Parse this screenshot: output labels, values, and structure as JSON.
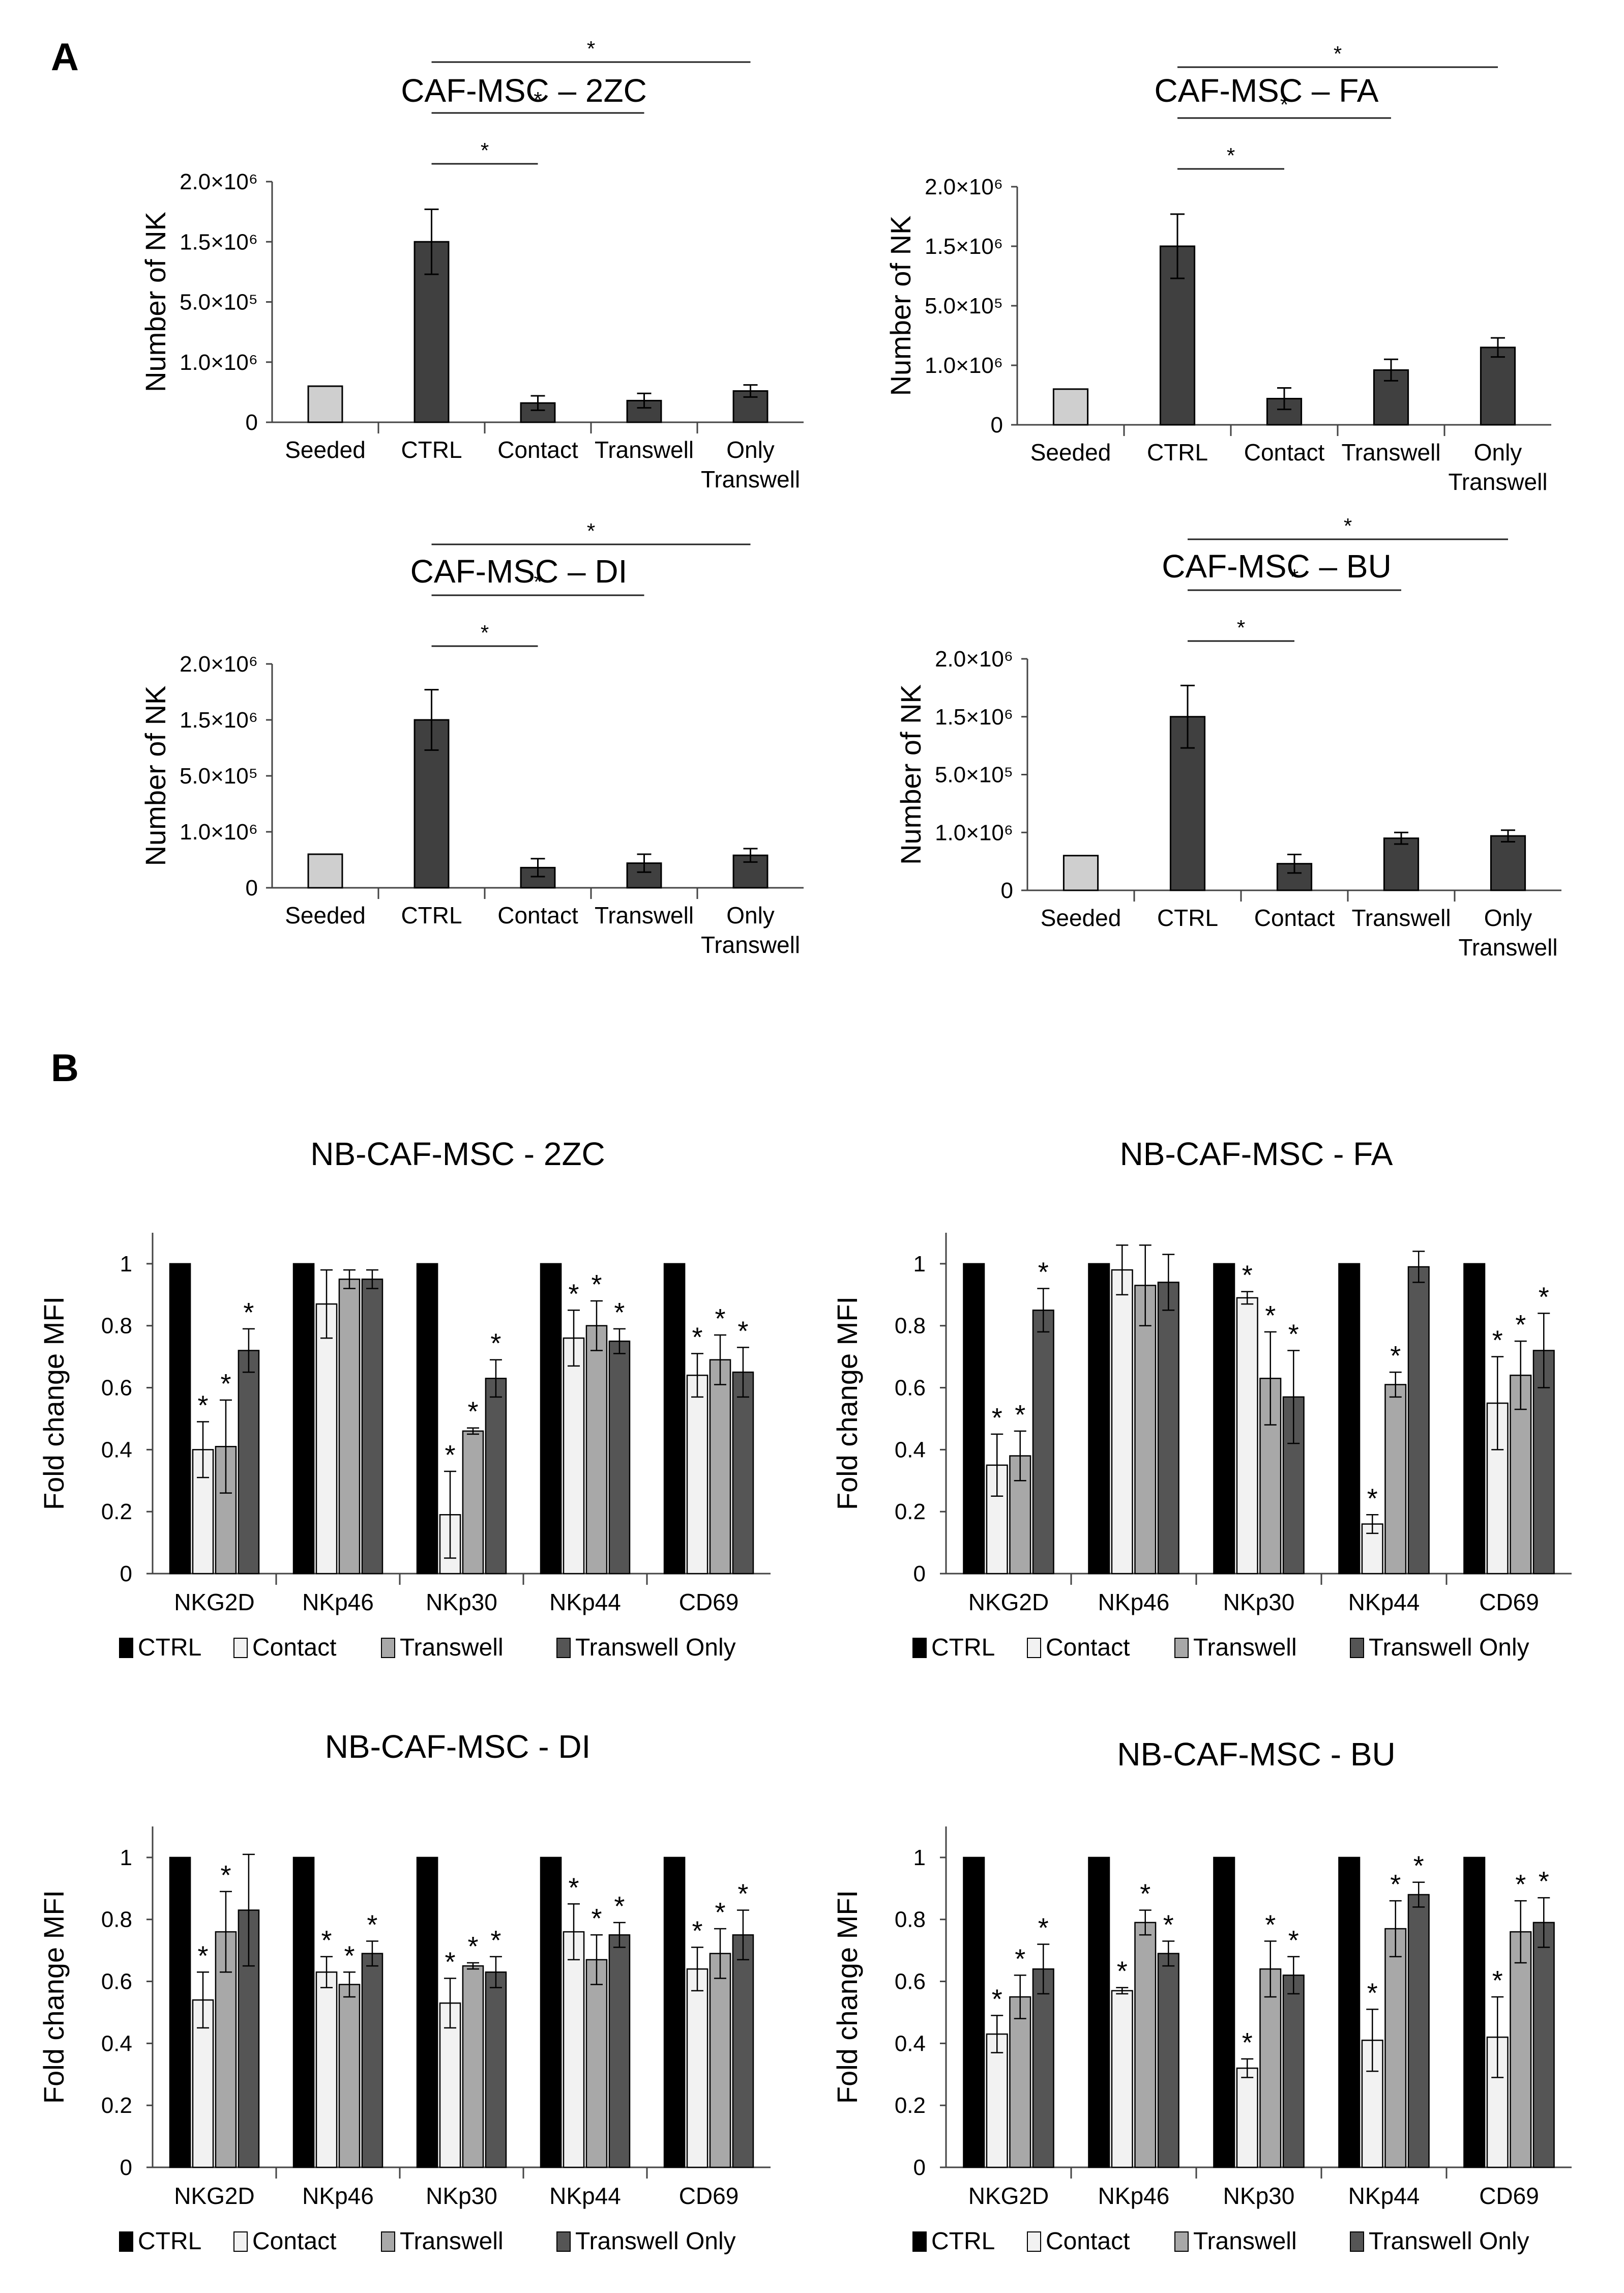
{
  "panel_labels": [
    "A",
    "B"
  ],
  "chart_data": [
    {
      "type": "bar",
      "panel": "A",
      "title": "CAF-MSC – 2ZC",
      "ylabel": "Number of NK",
      "categories": [
        "Seeded",
        "CTRL",
        "Contact",
        "Transwell",
        "Only\nTranswell"
      ],
      "ytick_labels": [
        "0",
        "1.0×10⁶",
        "5.0×10⁵",
        "1.5×10⁶",
        "2.0×10⁶"
      ],
      "ylim": [
        0,
        2000000
      ],
      "values": [
        300000,
        1500000,
        160000,
        180000,
        260000
      ],
      "errors": [
        0,
        270000,
        60000,
        60000,
        50000
      ],
      "bar_colors": [
        "#cfcfcf",
        "#404040",
        "#404040",
        "#404040",
        "#404040"
      ],
      "significance": [
        {
          "from": 1,
          "to": 2,
          "label": "*"
        },
        {
          "from": 1,
          "to": 3,
          "label": "*"
        },
        {
          "from": 1,
          "to": 4,
          "label": "*"
        }
      ]
    },
    {
      "type": "bar",
      "panel": "A",
      "title": "CAF-MSC – FA",
      "ylabel": "Number of NK",
      "categories": [
        "Seeded",
        "CTRL",
        "Contact",
        "Transwell",
        "Only\nTranswell"
      ],
      "ytick_labels": [
        "0",
        "1.0×10⁶",
        "5.0×10⁵",
        "1.5×10⁶",
        "2.0×10⁶"
      ],
      "ylim": [
        0,
        2000000
      ],
      "values": [
        300000,
        1500000,
        220000,
        460000,
        650000
      ],
      "errors": [
        0,
        270000,
        90000,
        90000,
        80000
      ],
      "bar_colors": [
        "#cfcfcf",
        "#404040",
        "#404040",
        "#404040",
        "#404040"
      ],
      "significance": [
        {
          "from": 1,
          "to": 2,
          "label": "*"
        },
        {
          "from": 1,
          "to": 3,
          "label": "*"
        },
        {
          "from": 1,
          "to": 4,
          "label": "*"
        }
      ]
    },
    {
      "type": "bar",
      "panel": "A",
      "title": "CAF-MSC – DI",
      "ylabel": "Number of NK",
      "categories": [
        "Seeded",
        "CTRL",
        "Contact",
        "Transwell",
        "Only\nTranswell"
      ],
      "ytick_labels": [
        "0",
        "1.0×10⁶",
        "5.0×10⁵",
        "1.5×10⁶",
        "2.0×10⁶"
      ],
      "ylim": [
        0,
        2000000
      ],
      "values": [
        300000,
        1500000,
        180000,
        220000,
        290000
      ],
      "errors": [
        0,
        270000,
        80000,
        80000,
        60000
      ],
      "bar_colors": [
        "#cfcfcf",
        "#404040",
        "#404040",
        "#404040",
        "#404040"
      ],
      "significance": [
        {
          "from": 1,
          "to": 2,
          "label": "*"
        },
        {
          "from": 1,
          "to": 3,
          "label": "*"
        },
        {
          "from": 1,
          "to": 4,
          "label": "*"
        }
      ]
    },
    {
      "type": "bar",
      "panel": "A",
      "title": "CAF-MSC – BU",
      "ylabel": "Number of NK",
      "categories": [
        "Seeded",
        "CTRL",
        "Contact",
        "Transwell",
        "Only\nTranswell"
      ],
      "ytick_labels": [
        "0",
        "1.0×10⁶",
        "5.0×10⁵",
        "1.5×10⁶",
        "2.0×10⁶"
      ],
      "ylim": [
        0,
        2000000
      ],
      "values": [
        300000,
        1500000,
        230000,
        450000,
        470000
      ],
      "errors": [
        0,
        270000,
        80000,
        50000,
        50000
      ],
      "bar_colors": [
        "#cfcfcf",
        "#404040",
        "#404040",
        "#404040",
        "#404040"
      ],
      "significance": [
        {
          "from": 1,
          "to": 2,
          "label": "*"
        },
        {
          "from": 1,
          "to": 3,
          "label": "*"
        },
        {
          "from": 1,
          "to": 4,
          "label": "*"
        }
      ]
    },
    {
      "type": "bar",
      "panel": "B",
      "title": "NB-CAF-MSC - 2ZC",
      "ylabel": "Fold change MFI",
      "categories": [
        "NKG2D",
        "NKp46",
        "NKp30",
        "NKp44",
        "CD69"
      ],
      "ytick_labels": [
        "0",
        "0.2",
        "0.4",
        "0.6",
        "0.8",
        "1"
      ],
      "ylim": [
        0,
        1.1
      ],
      "series": [
        {
          "name": "CTRL",
          "color": "#000000",
          "values": [
            1,
            1,
            1,
            1,
            1
          ],
          "errors": [
            0,
            0,
            0,
            0,
            0
          ],
          "sig": [
            false,
            false,
            false,
            false,
            false
          ]
        },
        {
          "name": "Contact",
          "color": "#f2f2f2",
          "values": [
            0.4,
            0.87,
            0.19,
            0.76,
            0.64
          ],
          "errors": [
            0.09,
            0.11,
            0.14,
            0.09,
            0.07
          ],
          "sig": [
            true,
            false,
            true,
            true,
            true
          ]
        },
        {
          "name": "Transwell",
          "color": "#a8a8a8",
          "values": [
            0.41,
            0.95,
            0.46,
            0.8,
            0.69
          ],
          "errors": [
            0.15,
            0.03,
            0.01,
            0.08,
            0.08
          ],
          "sig": [
            true,
            false,
            true,
            true,
            true
          ]
        },
        {
          "name": "Transwell Only",
          "color": "#555555",
          "values": [
            0.72,
            0.95,
            0.63,
            0.75,
            0.65
          ],
          "errors": [
            0.07,
            0.03,
            0.06,
            0.04,
            0.08
          ],
          "sig": [
            true,
            false,
            true,
            true,
            true
          ]
        }
      ]
    },
    {
      "type": "bar",
      "panel": "B",
      "title": "NB-CAF-MSC - FA",
      "ylabel": "Fold change MFI",
      "categories": [
        "NKG2D",
        "NKp46",
        "NKp30",
        "NKp44",
        "CD69"
      ],
      "ytick_labels": [
        "0",
        "0.2",
        "0.4",
        "0.6",
        "0.8",
        "1"
      ],
      "ylim": [
        0,
        1.1
      ],
      "series": [
        {
          "name": "CTRL",
          "color": "#000000",
          "values": [
            1,
            1,
            1,
            1,
            1
          ],
          "errors": [
            0,
            0,
            0,
            0,
            0
          ],
          "sig": [
            false,
            false,
            false,
            false,
            false
          ]
        },
        {
          "name": "Contact",
          "color": "#f2f2f2",
          "values": [
            0.35,
            0.98,
            0.89,
            0.16,
            0.55
          ],
          "errors": [
            0.1,
            0.08,
            0.02,
            0.03,
            0.15
          ],
          "sig": [
            true,
            false,
            true,
            true,
            true
          ]
        },
        {
          "name": "Transwell",
          "color": "#a8a8a8",
          "values": [
            0.38,
            0.93,
            0.63,
            0.61,
            0.64
          ],
          "errors": [
            0.08,
            0.13,
            0.15,
            0.04,
            0.11
          ],
          "sig": [
            true,
            false,
            true,
            true,
            true
          ]
        },
        {
          "name": "Transwell Only",
          "color": "#555555",
          "values": [
            0.85,
            0.94,
            0.57,
            0.99,
            0.72
          ],
          "errors": [
            0.07,
            0.09,
            0.15,
            0.05,
            0.12
          ],
          "sig": [
            true,
            false,
            true,
            false,
            true
          ]
        }
      ]
    },
    {
      "type": "bar",
      "panel": "B",
      "title": "NB-CAF-MSC - DI",
      "ylabel": "Fold change MFI",
      "categories": [
        "NKG2D",
        "NKp46",
        "NKp30",
        "NKp44",
        "CD69"
      ],
      "ytick_labels": [
        "0",
        "0.2",
        "0.4",
        "0.6",
        "0.8",
        "1"
      ],
      "ylim": [
        0,
        1.1
      ],
      "series": [
        {
          "name": "CTRL",
          "color": "#000000",
          "values": [
            1,
            1,
            1,
            1,
            1
          ],
          "errors": [
            0,
            0,
            0,
            0,
            0
          ],
          "sig": [
            false,
            false,
            false,
            false,
            false
          ]
        },
        {
          "name": "Contact",
          "color": "#f2f2f2",
          "values": [
            0.54,
            0.63,
            0.53,
            0.76,
            0.64
          ],
          "errors": [
            0.09,
            0.05,
            0.08,
            0.09,
            0.07
          ],
          "sig": [
            true,
            true,
            true,
            true,
            true
          ]
        },
        {
          "name": "Transwell",
          "color": "#a8a8a8",
          "values": [
            0.76,
            0.59,
            0.65,
            0.67,
            0.69
          ],
          "errors": [
            0.13,
            0.04,
            0.01,
            0.08,
            0.08
          ],
          "sig": [
            true,
            true,
            true,
            true,
            true
          ]
        },
        {
          "name": "Transwell Only",
          "color": "#555555",
          "values": [
            0.83,
            0.69,
            0.63,
            0.75,
            0.75
          ],
          "errors": [
            0.18,
            0.04,
            0.05,
            0.04,
            0.08
          ],
          "sig": [
            false,
            true,
            true,
            true,
            true
          ]
        }
      ]
    },
    {
      "type": "bar",
      "panel": "B",
      "title": "NB-CAF-MSC - BU",
      "ylabel": "Fold change MFI",
      "categories": [
        "NKG2D",
        "NKp46",
        "NKp30",
        "NKp44",
        "CD69"
      ],
      "ytick_labels": [
        "0",
        "0.2",
        "0.4",
        "0.6",
        "0.8",
        "1"
      ],
      "ylim": [
        0,
        1.1
      ],
      "series": [
        {
          "name": "CTRL",
          "color": "#000000",
          "values": [
            1,
            1,
            1,
            1,
            1
          ],
          "errors": [
            0,
            0,
            0,
            0,
            0
          ],
          "sig": [
            false,
            false,
            false,
            false,
            false
          ]
        },
        {
          "name": "Contact",
          "color": "#f2f2f2",
          "values": [
            0.43,
            0.57,
            0.32,
            0.41,
            0.42
          ],
          "errors": [
            0.06,
            0.01,
            0.03,
            0.1,
            0.13
          ],
          "sig": [
            true,
            true,
            true,
            true,
            true
          ]
        },
        {
          "name": "Transwell",
          "color": "#a8a8a8",
          "values": [
            0.55,
            0.79,
            0.64,
            0.77,
            0.76
          ],
          "errors": [
            0.07,
            0.04,
            0.09,
            0.09,
            0.1
          ],
          "sig": [
            true,
            true,
            true,
            true,
            true
          ]
        },
        {
          "name": "Transwell Only",
          "color": "#555555",
          "values": [
            0.64,
            0.69,
            0.62,
            0.88,
            0.79
          ],
          "errors": [
            0.08,
            0.04,
            0.06,
            0.04,
            0.08
          ],
          "sig": [
            true,
            true,
            true,
            true,
            true
          ]
        }
      ]
    }
  ]
}
